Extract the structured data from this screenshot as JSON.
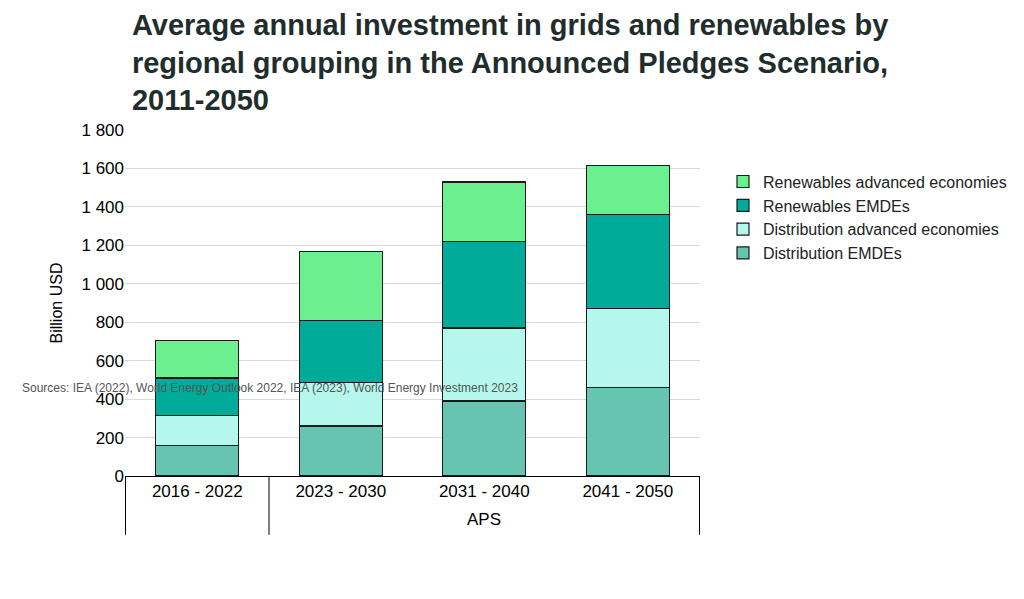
{
  "chart_data": {
    "type": "bar",
    "stacked": true,
    "title": "Average annual investment in grids and renewables by regional grouping in the Announced Pledges Scenario, 2011-2050",
    "ylabel": "Billion USD",
    "categories": [
      "2016 - 2022",
      "2023 - 2030",
      "2031 - 2040",
      "2041 - 2050"
    ],
    "series": [
      {
        "name": "Distribution EMDEs",
        "color": "#66c4b0",
        "values": [
          160,
          260,
          390,
          460
        ]
      },
      {
        "name": "Distribution advanced economies",
        "color": "#b5f7ec",
        "values": [
          155,
          225,
          380,
          410
        ]
      },
      {
        "name": "Renewables EMDEs",
        "color": "#00ab9a",
        "values": [
          195,
          325,
          450,
          490
        ]
      },
      {
        "name": "Renewables advanced economies",
        "color": "#6cf08f",
        "values": [
          195,
          360,
          310,
          255
        ]
      }
    ],
    "ylim": [
      0,
      1800
    ],
    "yticks": [
      0,
      200,
      400,
      600,
      800,
      {
        "value": 1000,
        "label": "1 000"
      },
      {
        "value": 1200,
        "label": "1 200"
      },
      {
        "value": 1400,
        "label": "1 400"
      },
      {
        "value": 1600,
        "label": "1 600"
      },
      {
        "value": 1800,
        "label": "1 800"
      }
    ],
    "grid": true,
    "legend": "right",
    "annotations": [
      {
        "text": "APS",
        "categories": [
          "2023 - 2030",
          "2031 - 2040",
          "2041 - 2050"
        ]
      },
      {
        "text": "Sources: IEA (2022), World Energy Outlook 2022, IEA (2023), World Energy Investment 2023"
      }
    ]
  }
}
